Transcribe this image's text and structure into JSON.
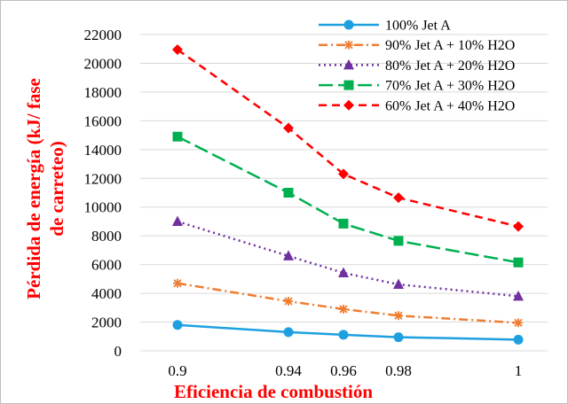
{
  "chart_data": {
    "type": "line",
    "title": "",
    "xlabel": "Eficiencia de combustión",
    "ylabel_lines": [
      "Pérdida  de energía (kJ/ fase",
      "de carreteo)"
    ],
    "x_categories": [
      "0.9",
      "0.94",
      "0.96",
      "0.98",
      "1"
    ],
    "y_ticks": [
      "0",
      "2000",
      "4000",
      "6000",
      "8000",
      "10000",
      "12000",
      "14000",
      "16000",
      "18000",
      "20000",
      "22000"
    ],
    "ylim": [
      0,
      22000
    ],
    "grid": "horizontal",
    "legend_position": "top-right",
    "series": [
      {
        "name": "100% Jet A",
        "color": "#1ea0e0",
        "dash": "solid",
        "marker": "circle",
        "values": [
          1800,
          1300,
          1120,
          950,
          780
        ]
      },
      {
        "name": "90% Jet A + 10% H2O",
        "color": "#ed7d31",
        "dash": "dashdot",
        "marker": "asterisk",
        "values": [
          4700,
          3450,
          2900,
          2450,
          1950
        ]
      },
      {
        "name": "80% Jet A + 20% H2O",
        "color": "#7030a0",
        "dash": "dotted",
        "marker": "triangle",
        "values": [
          9000,
          6600,
          5420,
          4620,
          3800
        ]
      },
      {
        "name": "70% Jet A + 30% H2O",
        "color": "#00b050",
        "dash": "longdash",
        "marker": "square",
        "values": [
          14900,
          11000,
          8850,
          7650,
          6150
        ]
      },
      {
        "name": "60% Jet A + 40% H2O",
        "color": "#ff0000",
        "dash": "dash",
        "marker": "diamond",
        "values": [
          20950,
          15500,
          12300,
          10650,
          8650
        ]
      }
    ]
  }
}
